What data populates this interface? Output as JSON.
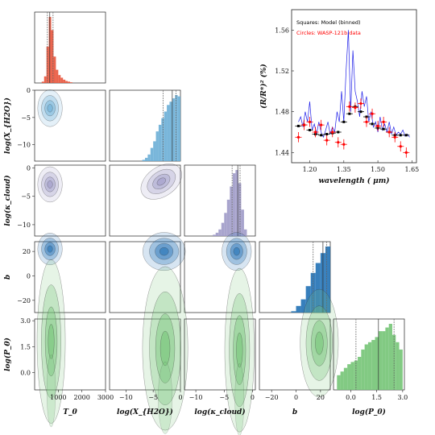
{
  "chart_data": [
    {
      "type": "corner",
      "params": [
        "T_0",
        "log(X_H2O)",
        "log(kappa_cloud)",
        "b",
        "log(P_0)"
      ],
      "axis_labels": [
        "T_0",
        "log(X_{H2O})",
        "log(κ_cloud)",
        "b",
        "log(P_0)"
      ],
      "ranges": {
        "T_0": [
          0,
          3000
        ],
        "log(X_H2O)": [
          -13,
          0
        ],
        "log(kappa_cloud)": [
          -12,
          0.5
        ],
        "b": [
          -30,
          28
        ],
        "log(P_0)": [
          -1,
          3.1
        ]
      },
      "ticks": {
        "T_0": [
          1000,
          2000,
          3000
        ],
        "log(X_H2O)": [
          -10,
          -5,
          0
        ],
        "log(kappa_cloud)": [
          -10,
          -5,
          0
        ],
        "b": [
          -20,
          0,
          20
        ],
        "log(P_0)": [
          0.0,
          1.5,
          3.0
        ]
      },
      "tick_labels": {
        "T_0": [
          "1000",
          "2000",
          "3000"
        ],
        "log(X_H2O)": [
          "−10",
          "−5",
          "0"
        ],
        "log(kappa_cloud)": [
          "−10",
          "−5",
          "0"
        ],
        "b": [
          "−20",
          "0",
          "20"
        ],
        "log(P_0)": [
          "0.0",
          "1.5",
          "3.0"
        ]
      },
      "colors": {
        "T_0": "#e8533a",
        "log(X_H2O)": "#6aaed6",
        "log(kappa_cloud)": "#9e9ac8",
        "b": "#2171b5",
        "log(P_0)": "#74c476"
      },
      "histograms": {
        "T_0": {
          "bins": [
            300,
            400,
            500,
            600,
            700,
            800,
            900,
            1000,
            1100,
            1200,
            1300,
            1400,
            1500
          ],
          "counts": [
            2,
            10,
            55,
            100,
            80,
            40,
            20,
            12,
            8,
            5,
            3,
            2,
            1
          ]
        },
        "log(X_H2O)": {
          "bins": [
            -7,
            -6.5,
            -6,
            -5.5,
            -5,
            -4.5,
            -4,
            -3.5,
            -3,
            -2.5,
            -2,
            -1.5,
            -1,
            -0.5
          ],
          "counts": [
            2,
            5,
            10,
            20,
            30,
            45,
            55,
            65,
            75,
            85,
            90,
            95,
            100,
            98
          ]
        },
        "log(kappa_cloud)": {
          "bins": [
            -7,
            -6.5,
            -6,
            -5.5,
            -5,
            -4.5,
            -4,
            -3.5,
            -3,
            -2.5,
            -2,
            -1.5
          ],
          "counts": [
            2,
            5,
            10,
            20,
            35,
            55,
            75,
            95,
            100,
            80,
            40,
            10
          ]
        },
        "b": {
          "bins": [
            -4,
            0,
            4,
            8,
            12,
            16,
            20,
            24
          ],
          "counts": [
            2,
            10,
            20,
            40,
            60,
            75,
            90,
            100
          ]
        },
        "log(P_0)": {
          "bins": [
            -0.8,
            -0.6,
            -0.4,
            -0.2,
            0,
            0.2,
            0.4,
            0.6,
            0.8,
            1,
            1.2,
            1.4,
            1.6,
            1.8,
            2,
            2.2,
            2.4,
            2.6,
            2.8
          ],
          "counts": [
            20,
            25,
            30,
            35,
            38,
            40,
            45,
            55,
            62,
            65,
            68,
            72,
            80,
            80,
            85,
            90,
            75,
            65,
            55
          ]
        }
      },
      "quantiles": {
        "T_0": [
          540,
          640,
          780
        ],
        "log(X_H2O)": [
          -3.2,
          -1.5,
          -0.8
        ],
        "log(kappa_cloud)": [
          -3.6,
          -2.6,
          -2.2
        ],
        "b": [
          14,
          22,
          25
        ],
        "log(P_0)": [
          0.3,
          1.6,
          2.5
        ]
      },
      "pairs": [
        {
          "x": "T_0",
          "y": "log(X_H2O)",
          "center": [
            650,
            -3.3
          ],
          "spread": [
            200,
            1.3
          ]
        },
        {
          "x": "T_0",
          "y": "log(kappa_cloud)",
          "center": [
            650,
            -2.9
          ],
          "spread": [
            200,
            1.2
          ]
        },
        {
          "x": "log(X_H2O)",
          "y": "log(kappa_cloud)",
          "center": [
            -3.5,
            -2.4
          ],
          "spread": [
            1.6,
            1.0
          ],
          "tilt": 1
        },
        {
          "x": "T_0",
          "y": "b",
          "center": [
            650,
            22
          ],
          "spread": [
            200,
            5
          ]
        },
        {
          "x": "log(X_H2O)",
          "y": "b",
          "center": [
            -3,
            20
          ],
          "spread": [
            1.5,
            6
          ]
        },
        {
          "x": "log(kappa_cloud)",
          "y": "b",
          "center": [
            -2.8,
            20
          ],
          "spread": [
            1.0,
            6
          ]
        },
        {
          "x": "T_0",
          "y": "log(P_0)",
          "center": [
            700,
            1.8
          ],
          "spread": [
            230,
            1.3
          ],
          "tail": "down"
        },
        {
          "x": "log(X_H2O)",
          "y": "log(P_0)",
          "center": [
            -2.8,
            1.4
          ],
          "spread": [
            1.6,
            1.3
          ],
          "tail": "down"
        },
        {
          "x": "log(kappa_cloud)",
          "y": "log(P_0)",
          "center": [
            -2.3,
            1.3
          ],
          "spread": [
            1.0,
            1.3
          ],
          "tail": "down"
        },
        {
          "x": "b",
          "y": "log(P_0)",
          "center": [
            19,
            1.7
          ],
          "spread": [
            6,
            1.2
          ]
        }
      ]
    },
    {
      "type": "line",
      "xlabel": "wavelength ( μm)",
      "ylabel": "(R/R*)² (%)",
      "xlim": [
        1.12,
        1.67
      ],
      "ylim": [
        1.43,
        1.58
      ],
      "xticks": [
        1.2,
        1.35,
        1.5,
        1.65
      ],
      "xtick_labels": [
        "1.20",
        "1.35",
        "1.50",
        "1.65"
      ],
      "yticks": [
        1.44,
        1.48,
        1.52,
        1.56
      ],
      "ytick_labels": [
        "1.44",
        "1.48",
        "1.52",
        "1.56"
      ],
      "legend": [
        {
          "label": "Squares: Model (binned)",
          "color": "#000000"
        },
        {
          "label": "Circles: WASP-121b data",
          "color": "#ff0000"
        }
      ],
      "legend_position": "top-left",
      "model_binned": {
        "x": [
          1.15,
          1.175,
          1.2,
          1.225,
          1.25,
          1.275,
          1.3,
          1.325,
          1.35,
          1.375,
          1.4,
          1.425,
          1.45,
          1.475,
          1.5,
          1.525,
          1.55,
          1.575,
          1.6,
          1.625
        ],
        "y": [
          1.466,
          1.467,
          1.462,
          1.458,
          1.457,
          1.458,
          1.459,
          1.46,
          1.47,
          1.478,
          1.485,
          1.48,
          1.475,
          1.468,
          1.464,
          1.463,
          1.46,
          1.457,
          1.457,
          1.457
        ]
      },
      "data": {
        "x": [
          1.15,
          1.175,
          1.2,
          1.225,
          1.25,
          1.275,
          1.3,
          1.325,
          1.35,
          1.375,
          1.4,
          1.425,
          1.45,
          1.475,
          1.5,
          1.525,
          1.55,
          1.575,
          1.6,
          1.625
        ],
        "y": [
          1.455,
          1.467,
          1.47,
          1.46,
          1.467,
          1.452,
          1.46,
          1.45,
          1.448,
          1.485,
          1.484,
          1.488,
          1.47,
          1.478,
          1.466,
          1.47,
          1.46,
          1.455,
          1.446,
          1.44
        ],
        "err": [
          0.005,
          0.005,
          0.005,
          0.005,
          0.005,
          0.005,
          0.005,
          0.005,
          0.005,
          0.005,
          0.005,
          0.005,
          0.005,
          0.005,
          0.005,
          0.005,
          0.005,
          0.005,
          0.005,
          0.005
        ]
      },
      "model_line": {
        "color": "#2020e8",
        "x": [
          1.15,
          1.16,
          1.17,
          1.18,
          1.19,
          1.2,
          1.21,
          1.22,
          1.23,
          1.24,
          1.25,
          1.26,
          1.27,
          1.28,
          1.29,
          1.3,
          1.31,
          1.32,
          1.33,
          1.34,
          1.35,
          1.36,
          1.37,
          1.38,
          1.39,
          1.4,
          1.41,
          1.42,
          1.43,
          1.44,
          1.45,
          1.46,
          1.47,
          1.48,
          1.49,
          1.5,
          1.51,
          1.52,
          1.53,
          1.54,
          1.55,
          1.56,
          1.57,
          1.58,
          1.59,
          1.6,
          1.61,
          1.62,
          1.63,
          1.64
        ],
        "y": [
          1.47,
          1.475,
          1.465,
          1.48,
          1.47,
          1.49,
          1.462,
          1.468,
          1.458,
          1.47,
          1.46,
          1.455,
          1.462,
          1.47,
          1.458,
          1.465,
          1.46,
          1.48,
          1.47,
          1.5,
          1.47,
          1.52,
          1.56,
          1.48,
          1.54,
          1.5,
          1.49,
          1.475,
          1.5,
          1.485,
          1.495,
          1.47,
          1.48,
          1.465,
          1.47,
          1.46,
          1.475,
          1.462,
          1.468,
          1.46,
          1.47,
          1.458,
          1.465,
          1.457,
          1.46,
          1.458,
          1.462,
          1.456,
          1.458,
          1.455
        ]
      }
    }
  ]
}
